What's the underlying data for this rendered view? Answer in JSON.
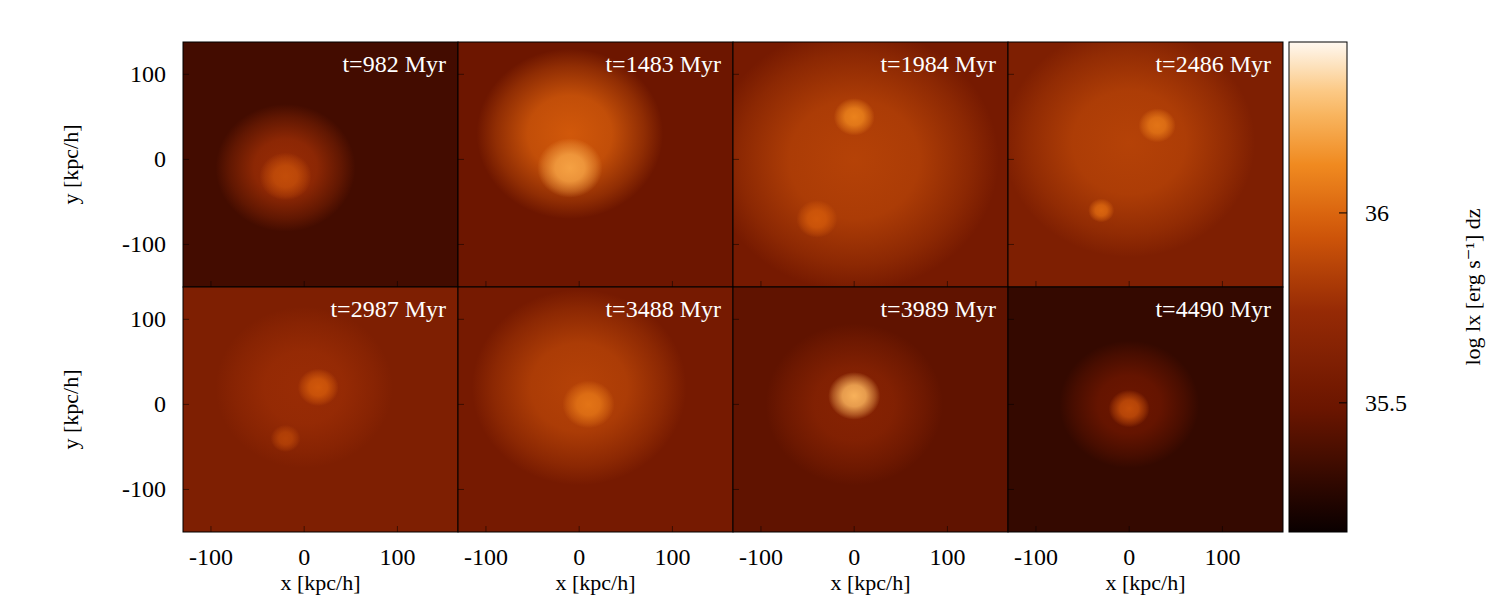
{
  "chart_data": {
    "type": "heatmap",
    "xlabel": "x [kpc/h]",
    "ylabel": "y [kpc/h]",
    "xlim": [
      -130,
      165
    ],
    "ylim": [
      -150,
      138
    ],
    "xticks": [
      -100,
      0,
      100
    ],
    "yticks": [
      -100,
      0,
      100
    ],
    "colorbar": {
      "label": "log  lx [erg s⁻¹] dz",
      "range": [
        35.16,
        36.45
      ],
      "ticks": [
        35.5,
        36
      ]
    },
    "panels": [
      {
        "title": "t=982 Myr",
        "background": 35.35,
        "components": [
          {
            "x": -20,
            "y": -10,
            "radius": 75,
            "value": 35.75
          },
          {
            "x": -20,
            "y": -20,
            "radius": 28,
            "value": 35.9
          }
        ]
      },
      {
        "title": "t=1483 Myr",
        "background": 35.5,
        "components": [
          {
            "x": -10,
            "y": 30,
            "radius": 100,
            "value": 35.95
          },
          {
            "x": -10,
            "y": -10,
            "radius": 35,
            "value": 36.2
          }
        ]
      },
      {
        "title": "t=1984 Myr",
        "background": 35.55,
        "components": [
          {
            "x": 0,
            "y": 0,
            "radius": 155,
            "value": 35.85
          },
          {
            "x": 0,
            "y": 50,
            "radius": 22,
            "value": 36.1
          },
          {
            "x": -40,
            "y": -70,
            "radius": 22,
            "value": 35.95
          }
        ]
      },
      {
        "title": "t=2486 Myr",
        "background": 35.6,
        "components": [
          {
            "x": 0,
            "y": 20,
            "radius": 135,
            "value": 35.85
          },
          {
            "x": 30,
            "y": 40,
            "radius": 20,
            "value": 36.05
          },
          {
            "x": -30,
            "y": -60,
            "radius": 14,
            "value": 36.0
          }
        ]
      },
      {
        "title": "t=2987 Myr",
        "background": 35.6,
        "components": [
          {
            "x": 0,
            "y": 20,
            "radius": 95,
            "value": 35.75
          },
          {
            "x": 15,
            "y": 20,
            "radius": 22,
            "value": 35.95
          },
          {
            "x": -20,
            "y": -40,
            "radius": 16,
            "value": 35.85
          }
        ]
      },
      {
        "title": "t=3488 Myr",
        "background": 35.55,
        "components": [
          {
            "x": 0,
            "y": 20,
            "radius": 115,
            "value": 35.85
          },
          {
            "x": 10,
            "y": 0,
            "radius": 28,
            "value": 36.05
          }
        ]
      },
      {
        "title": "t=3989 Myr",
        "background": 35.45,
        "components": [
          {
            "x": 0,
            "y": 0,
            "radius": 95,
            "value": 35.65
          },
          {
            "x": 0,
            "y": 10,
            "radius": 28,
            "value": 36.25
          }
        ]
      },
      {
        "title": "t=4490 Myr",
        "background": 35.3,
        "components": [
          {
            "x": 0,
            "y": 0,
            "radius": 75,
            "value": 35.5
          },
          {
            "x": 0,
            "y": -5,
            "radius": 22,
            "value": 35.9
          }
        ]
      }
    ]
  }
}
